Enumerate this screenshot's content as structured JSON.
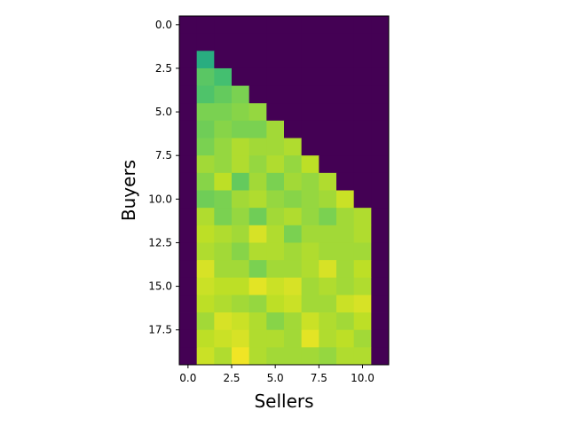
{
  "chart_data": {
    "type": "heatmap",
    "title": "",
    "xlabel": "Sellers",
    "ylabel": "Buyers",
    "colormap": "viridis",
    "xlim": [
      -0.5,
      11.5
    ],
    "ylim": [
      19.5,
      -0.5
    ],
    "xticks": [
      "0.0",
      "2.5",
      "5.0",
      "7.5",
      "10.0"
    ],
    "yticks": [
      "0.0",
      "2.5",
      "5.0",
      "7.5",
      "10.0",
      "12.5",
      "15.0",
      "17.5"
    ],
    "xtick_values": [
      0,
      2.5,
      5,
      7.5,
      10
    ],
    "ytick_values": [
      0,
      2.5,
      5,
      7.5,
      10,
      12.5,
      15,
      17.5
    ],
    "value_range": [
      0,
      1
    ],
    "values": [
      [
        0,
        0,
        0,
        0,
        0,
        0,
        0,
        0,
        0,
        0,
        0,
        0
      ],
      [
        0,
        0,
        0,
        0,
        0,
        0,
        0,
        0,
        0,
        0,
        0,
        0
      ],
      [
        0,
        0.62,
        0,
        0,
        0,
        0,
        0,
        0,
        0,
        0,
        0,
        0
      ],
      [
        0,
        0.74,
        0.7,
        0,
        0,
        0,
        0,
        0,
        0,
        0,
        0,
        0
      ],
      [
        0,
        0.72,
        0.76,
        0.8,
        0,
        0,
        0,
        0,
        0,
        0,
        0,
        0
      ],
      [
        0,
        0.8,
        0.8,
        0.82,
        0.84,
        0,
        0,
        0,
        0,
        0,
        0,
        0
      ],
      [
        0,
        0.78,
        0.82,
        0.8,
        0.8,
        0.86,
        0,
        0,
        0,
        0,
        0,
        0
      ],
      [
        0,
        0.8,
        0.84,
        0.88,
        0.86,
        0.86,
        0.88,
        0,
        0,
        0,
        0,
        0
      ],
      [
        0,
        0.86,
        0.84,
        0.88,
        0.84,
        0.88,
        0.84,
        0.9,
        0,
        0,
        0,
        0
      ],
      [
        0,
        0.82,
        0.9,
        0.76,
        0.86,
        0.8,
        0.86,
        0.84,
        0.88,
        0,
        0,
        0
      ],
      [
        0,
        0.78,
        0.8,
        0.86,
        0.88,
        0.84,
        0.82,
        0.84,
        0.86,
        0.92,
        0,
        0
      ],
      [
        0,
        0.88,
        0.8,
        0.84,
        0.78,
        0.86,
        0.88,
        0.84,
        0.8,
        0.86,
        0.88,
        0
      ],
      [
        0,
        0.9,
        0.88,
        0.86,
        0.94,
        0.88,
        0.8,
        0.86,
        0.86,
        0.86,
        0.88,
        0
      ],
      [
        0,
        0.88,
        0.86,
        0.82,
        0.88,
        0.88,
        0.86,
        0.88,
        0.86,
        0.86,
        0.86,
        0
      ],
      [
        0,
        0.94,
        0.86,
        0.86,
        0.8,
        0.86,
        0.86,
        0.88,
        0.94,
        0.86,
        0.9,
        0
      ],
      [
        0,
        0.92,
        0.9,
        0.9,
        0.96,
        0.92,
        0.94,
        0.86,
        0.88,
        0.86,
        0.88,
        0
      ],
      [
        0,
        0.9,
        0.88,
        0.86,
        0.84,
        0.9,
        0.92,
        0.86,
        0.86,
        0.92,
        0.94,
        0
      ],
      [
        0,
        0.86,
        0.94,
        0.92,
        0.88,
        0.82,
        0.86,
        0.92,
        0.88,
        0.86,
        0.9,
        0
      ],
      [
        0,
        0.9,
        0.92,
        0.94,
        0.88,
        0.88,
        0.86,
        0.96,
        0.88,
        0.9,
        0.86,
        0
      ],
      [
        0,
        0.92,
        0.88,
        0.98,
        0.88,
        0.86,
        0.86,
        0.86,
        0.84,
        0.88,
        0.88,
        0
      ]
    ]
  }
}
